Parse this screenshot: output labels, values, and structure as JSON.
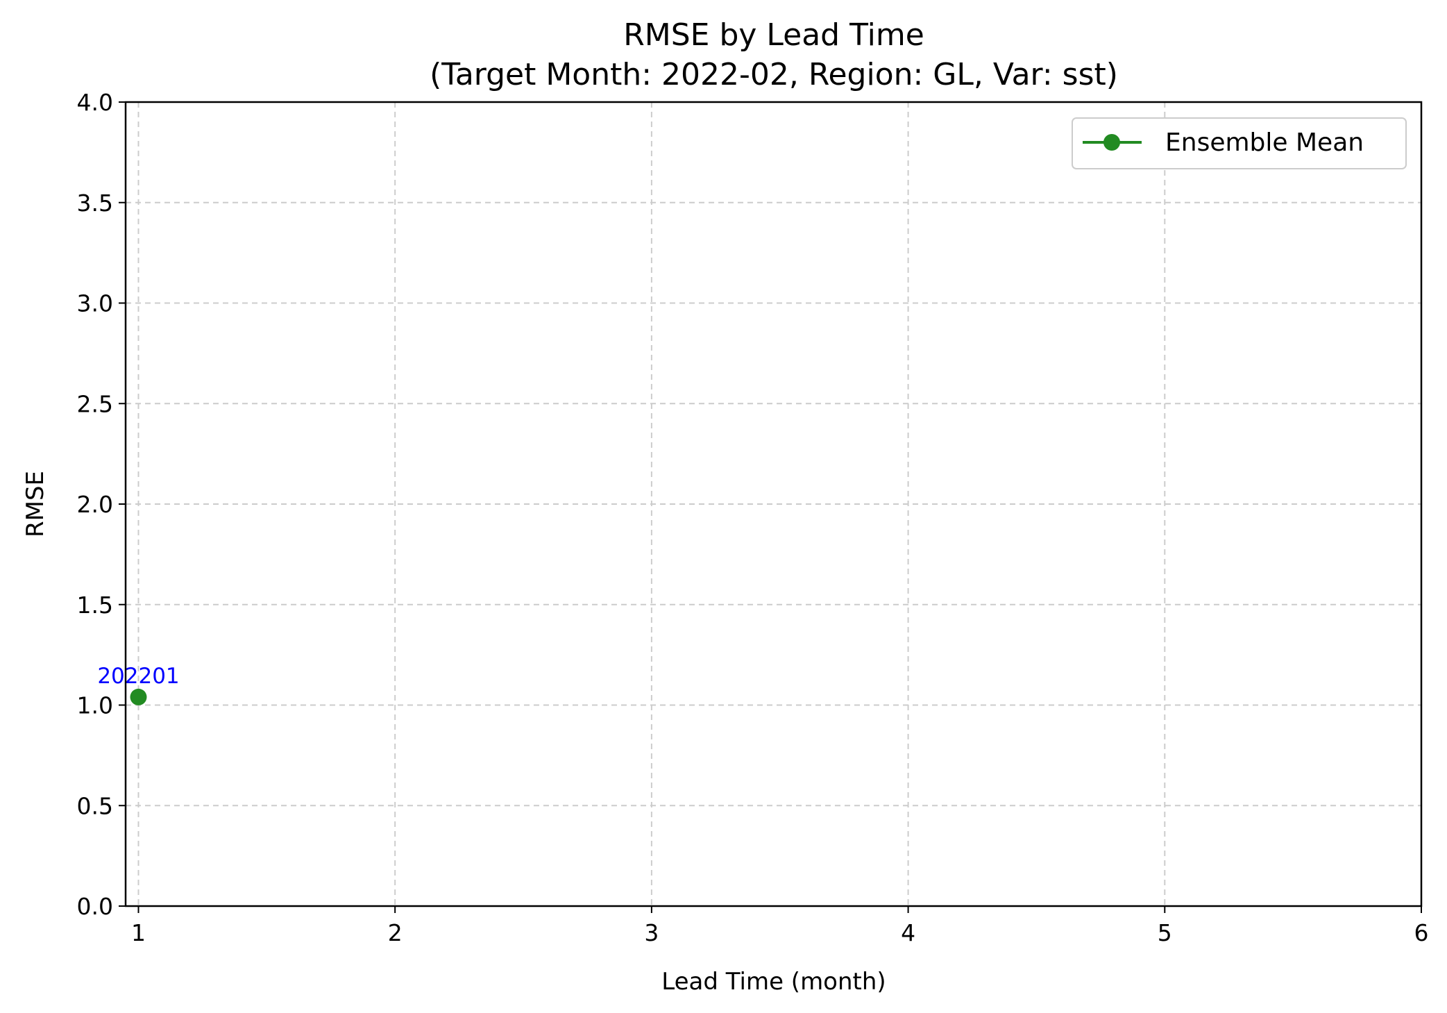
{
  "chart_data": {
    "type": "line",
    "title": "RMSE by Lead Time",
    "subtitle": "(Target Month: 2022-02, Region: GL, Var: sst)",
    "xlabel": "Lead Time (month)",
    "ylabel": "RMSE",
    "xlim": [
      0.95,
      6
    ],
    "ylim": [
      0,
      4
    ],
    "xticks": [
      1,
      2,
      3,
      4,
      5,
      6
    ],
    "xtick_labels": [
      "1",
      "2",
      "3",
      "4",
      "5",
      "6"
    ],
    "yticks": [
      0,
      0.5,
      1,
      1.5,
      2,
      2.5,
      3,
      3.5,
      4
    ],
    "ytick_labels": [
      "0.0",
      "0.5",
      "1.0",
      "1.5",
      "2.0",
      "2.5",
      "3.0",
      "3.5",
      "4.0"
    ],
    "grid": true,
    "legend_position": "top-right",
    "series": [
      {
        "name": "Ensemble Mean",
        "color": "#228b22",
        "marker": "circle",
        "x": [
          1
        ],
        "y": [
          1.04
        ]
      }
    ],
    "annotations": [
      {
        "text": "202201",
        "x": 1,
        "y": 1.04,
        "color": "#0000ff"
      }
    ]
  }
}
